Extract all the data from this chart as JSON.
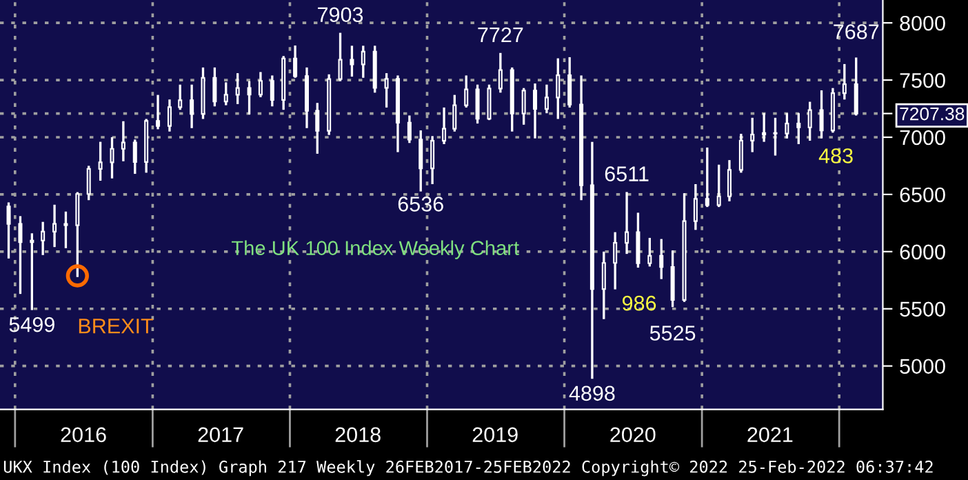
{
  "chart_data": {
    "type": "candlestick",
    "title": "The UK 100 Index Weekly Chart",
    "color": "#ffffff",
    "x": [
      "2015-12-15",
      "2016-01-15",
      "2016-02-15",
      "2016-03-15",
      "2016-04-15",
      "2016-05-15",
      "2016-06-15",
      "2016-07-15",
      "2016-08-15",
      "2016-09-15",
      "2016-10-15",
      "2016-11-15",
      "2016-12-15",
      "2017-01-15",
      "2017-02-15",
      "2017-03-15",
      "2017-04-15",
      "2017-05-15",
      "2017-06-15",
      "2017-07-15",
      "2017-08-15",
      "2017-09-15",
      "2017-10-15",
      "2017-11-15",
      "2017-12-15",
      "2018-01-15",
      "2018-02-15",
      "2018-03-15",
      "2018-04-15",
      "2018-05-15",
      "2018-06-15",
      "2018-07-15",
      "2018-08-15",
      "2018-09-15",
      "2018-10-15",
      "2018-11-15",
      "2018-12-15",
      "2019-01-15",
      "2019-02-15",
      "2019-03-15",
      "2019-04-15",
      "2019-05-15",
      "2019-06-15",
      "2019-07-15",
      "2019-08-15",
      "2019-09-15",
      "2019-10-15",
      "2019-11-15",
      "2019-12-15",
      "2020-01-15",
      "2020-02-15",
      "2020-03-15",
      "2020-04-15",
      "2020-05-15",
      "2020-06-15",
      "2020-07-15",
      "2020-08-15",
      "2020-09-15",
      "2020-10-15",
      "2020-11-15",
      "2020-12-15",
      "2021-01-15",
      "2021-02-15",
      "2021-03-15",
      "2021-04-15",
      "2021-05-15",
      "2021-06-15",
      "2021-07-15",
      "2021-08-15",
      "2021-09-15",
      "2021-10-15",
      "2021-11-15",
      "2021-12-15",
      "2022-01-15",
      "2022-02-15"
    ],
    "ohlc": [
      [
        6395,
        6420,
        5950,
        6242
      ],
      [
        6242,
        6300,
        5640,
        6083
      ],
      [
        6083,
        6150,
        5499,
        6097
      ],
      [
        6097,
        6250,
        5980,
        6175
      ],
      [
        6175,
        6400,
        6050,
        6242
      ],
      [
        6242,
        6340,
        6040,
        6231
      ],
      [
        6231,
        6510,
        5788,
        6504
      ],
      [
        6504,
        6740,
        6460,
        6724
      ],
      [
        6724,
        6950,
        6630,
        6781
      ],
      [
        6781,
        6990,
        6650,
        6899
      ],
      [
        6899,
        7130,
        6800,
        6954
      ],
      [
        6954,
        6970,
        6690,
        6784
      ],
      [
        6784,
        7150,
        6700,
        7143
      ],
      [
        7143,
        7360,
        7080,
        7099
      ],
      [
        7099,
        7320,
        7060,
        7263
      ],
      [
        7263,
        7450,
        7250,
        7323
      ],
      [
        7323,
        7450,
        7090,
        7204
      ],
      [
        7204,
        7600,
        7170,
        7520
      ],
      [
        7520,
        7600,
        7280,
        7313
      ],
      [
        7313,
        7470,
        7290,
        7372
      ],
      [
        7372,
        7550,
        7300,
        7431
      ],
      [
        7431,
        7480,
        7210,
        7373
      ],
      [
        7373,
        7560,
        7360,
        7493
      ],
      [
        7493,
        7530,
        7280,
        7327
      ],
      [
        7327,
        7700,
        7250,
        7688
      ],
      [
        7688,
        7792,
        7530,
        7534
      ],
      [
        7534,
        7600,
        7090,
        7232
      ],
      [
        7232,
        7290,
        6866,
        7057
      ],
      [
        7057,
        7540,
        7030,
        7509
      ],
      [
        7509,
        7903,
        7500,
        7678
      ],
      [
        7678,
        7790,
        7540,
        7637
      ],
      [
        7637,
        7790,
        7530,
        7749
      ],
      [
        7749,
        7790,
        7400,
        7432
      ],
      [
        7432,
        7550,
        7270,
        7510
      ],
      [
        7510,
        7530,
        6880,
        7128
      ],
      [
        7128,
        7180,
        6960,
        6980
      ],
      [
        6980,
        7050,
        6536,
        6728
      ],
      [
        6728,
        7000,
        6600,
        6969
      ],
      [
        6969,
        7250,
        6950,
        7075
      ],
      [
        7075,
        7360,
        7060,
        7279
      ],
      [
        7279,
        7530,
        7270,
        7418
      ],
      [
        7418,
        7450,
        7130,
        7162
      ],
      [
        7162,
        7450,
        7160,
        7426
      ],
      [
        7426,
        7727,
        7400,
        7587
      ],
      [
        7587,
        7600,
        7060,
        7207
      ],
      [
        7207,
        7420,
        7120,
        7408
      ],
      [
        7408,
        7460,
        7000,
        7248
      ],
      [
        7248,
        7450,
        7220,
        7347
      ],
      [
        7347,
        7680,
        7170,
        7542
      ],
      [
        7542,
        7690,
        7270,
        7286
      ],
      [
        7286,
        7530,
        6460,
        6580
      ],
      [
        6580,
        6950,
        4898,
        5672
      ],
      [
        5672,
        5990,
        5420,
        5901
      ],
      [
        5901,
        6160,
        5680,
        6077
      ],
      [
        6077,
        6511,
        5990,
        6170
      ],
      [
        6170,
        6330,
        5870,
        5898
      ],
      [
        5898,
        6110,
        5880,
        5964
      ],
      [
        5964,
        6100,
        5770,
        5866
      ],
      [
        5866,
        6000,
        5525,
        5577
      ],
      [
        5577,
        6500,
        5570,
        6266
      ],
      [
        6266,
        6580,
        6200,
        6461
      ],
      [
        6461,
        6900,
        6400,
        6407
      ],
      [
        6407,
        6750,
        6400,
        6483
      ],
      [
        6483,
        6790,
        6450,
        6714
      ],
      [
        6714,
        7020,
        6700,
        6970
      ],
      [
        6970,
        7160,
        6880,
        7023
      ],
      [
        7023,
        7200,
        6970,
        7037
      ],
      [
        7037,
        7160,
        6850,
        7032
      ],
      [
        7032,
        7200,
        7000,
        7120
      ],
      [
        7120,
        7200,
        6950,
        7086
      ],
      [
        7086,
        7300,
        6980,
        7238
      ],
      [
        7238,
        7400,
        7000,
        7059
      ],
      [
        7059,
        7420,
        7050,
        7385
      ],
      [
        7385,
        7630,
        7340,
        7464
      ],
      [
        7464,
        7687,
        7200,
        7207.38
      ]
    ],
    "xlim": [
      "2015-11-22",
      "2022-04-27"
    ],
    "xticks": [
      {
        "value": "2016-07-01",
        "label": "2016"
      },
      {
        "value": "2017-07-01",
        "label": "2017"
      },
      {
        "value": "2018-07-01",
        "label": "2018"
      },
      {
        "value": "2019-07-01",
        "label": "2019"
      },
      {
        "value": "2020-07-01",
        "label": "2020"
      },
      {
        "value": "2021-07-01",
        "label": "2021"
      }
    ],
    "ylim": [
      4620,
      8200
    ],
    "yticks": [
      5000,
      5500,
      6000,
      6500,
      7000,
      {
        "value": 7207.38,
        "label": "7207.38"
      },
      7500,
      8000
    ],
    "grid": "y",
    "ref_lines": [
      {
        "axis": "x",
        "value": "2016-01-01",
        "line_style": "dotted",
        "color": "#a0a0a0"
      },
      {
        "axis": "x",
        "value": "2017-01-01",
        "line_style": "dotted",
        "color": "#a0a0a0"
      },
      {
        "axis": "x",
        "value": "2018-01-01",
        "line_style": "dotted",
        "color": "#a0a0a0"
      },
      {
        "axis": "x",
        "value": "2019-01-01",
        "line_style": "dotted",
        "color": "#a0a0a0"
      },
      {
        "axis": "x",
        "value": "2020-01-01",
        "line_style": "dotted",
        "color": "#a0a0a0"
      },
      {
        "axis": "x",
        "value": "2021-01-01",
        "line_style": "dotted",
        "color": "#a0a0a0"
      },
      {
        "axis": "x",
        "value": "2022-01-01",
        "line_style": "dotted",
        "color": "#a0a0a0"
      }
    ],
    "annotations": [
      {
        "text": "5499",
        "x": "2016-02-15",
        "y": 5499
      },
      {
        "text": "BREXIT",
        "x": "2016-06-15",
        "y": 5788
      },
      {
        "text": "7903",
        "x": "2018-05-15",
        "y": 7903
      },
      {
        "text": "6536",
        "x": "2018-12-15",
        "y": 6536
      },
      {
        "text": "7727",
        "x": "2019-07-15",
        "y": 7727
      },
      {
        "text": "4898",
        "x": "2020-03-15",
        "y": 4898
      },
      {
        "text": "6511",
        "x": "2020-06-15",
        "y": 6511
      },
      {
        "text": "5525",
        "x": "2020-10-15",
        "y": 5525
      },
      {
        "text": "7687",
        "x": "2022-02-15",
        "y": 7687
      },
      "986",
      "483",
      "UKX Index (100 Index) Graph 217 Weekly 26FEB2017-25FEB2022 Copyright© 2022 25-Feb-2022 06:37:42"
    ]
  }
}
